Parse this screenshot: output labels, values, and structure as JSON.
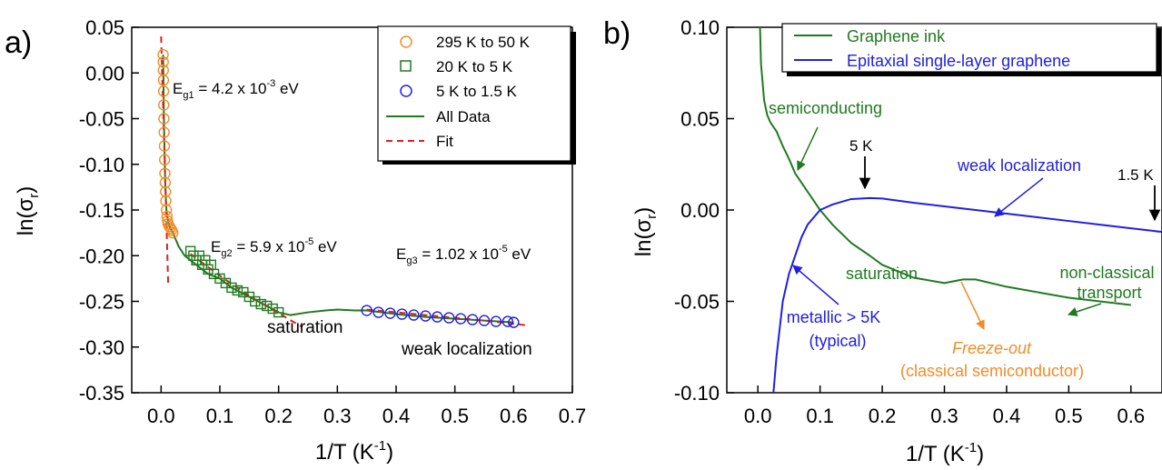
{
  "panels": {
    "a": {
      "panel_label": "a)",
      "xlabel_main": "1/T (K",
      "xlabel_sup": "-1",
      "xlabel_close": ")",
      "ylabel_main": "ln(σ",
      "ylabel_sub": "r",
      "ylabel_close": ")",
      "legend": [
        "295 K to 50 K",
        "20 K to 5 K",
        "5 K to 1.5 K",
        "All Data",
        "Fit"
      ],
      "annotations": {
        "eg1": {
          "prefix": "E",
          "sub": "g1",
          "text": " = 4.2 x 10",
          "sup": "-3",
          "suffix": " eV"
        },
        "eg2": {
          "prefix": "E",
          "sub": "g2",
          "text": " = 5.9 x 10",
          "sup": "-5",
          "suffix": " eV"
        },
        "eg3": {
          "prefix": "E",
          "sub": "g3",
          "text": " = 1.02 x 10",
          "sup": "-5",
          "suffix": " eV"
        },
        "saturation": "saturation",
        "weak_localization": "weak localization"
      }
    },
    "b": {
      "panel_label": "b)",
      "xlabel_main": "1/T (K",
      "xlabel_sup": "-1",
      "xlabel_close": ")",
      "ylabel_main": "ln(σ",
      "ylabel_sub": "r",
      "ylabel_close": ")",
      "legend": [
        "Graphene ink",
        "Epitaxial single-layer graphene"
      ],
      "annotations": {
        "semiconducting": "semiconducting",
        "five_k": "5 K",
        "weak_localization": "weak localization",
        "one_five_k": "1.5 K",
        "saturation": "saturation",
        "non_classical_1": "non-classical",
        "non_classical_2": "transport",
        "metallic_1": "metallic > 5K",
        "metallic_2": "(typical)",
        "freeze_out_1": "Freeze-out",
        "freeze_out_2": "(classical semiconductor)"
      }
    }
  },
  "colors": {
    "orange": "#f28c28",
    "green": "#1f7a1f",
    "blue": "#2020e0",
    "red": "#e02020",
    "black": "#000000"
  },
  "chart_data": [
    {
      "type": "scatter",
      "xlim": [
        -0.05,
        0.7
      ],
      "ylim": [
        -0.35,
        0.05
      ],
      "xticks": [
        0.0,
        0.1,
        0.2,
        0.3,
        0.4,
        0.5,
        0.6,
        0.7
      ],
      "yticks": [
        0.05,
        0.0,
        -0.05,
        -0.1,
        -0.15,
        -0.2,
        -0.25,
        -0.3,
        -0.35
      ],
      "legend_position": "top-right",
      "series": [
        {
          "name": "295 K to 50 K",
          "marker": "circle",
          "color": "orange",
          "x": [
            0.0034,
            0.0036,
            0.0038,
            0.004,
            0.0042,
            0.0045,
            0.0048,
            0.0052,
            0.0056,
            0.006,
            0.0065,
            0.007,
            0.0075,
            0.008,
            0.009,
            0.01,
            0.011,
            0.012,
            0.014,
            0.016,
            0.018,
            0.02
          ],
          "y": [
            0.02,
            0.012,
            0.003,
            -0.008,
            -0.02,
            -0.035,
            -0.05,
            -0.065,
            -0.08,
            -0.095,
            -0.11,
            -0.12,
            -0.13,
            -0.14,
            -0.15,
            -0.157,
            -0.162,
            -0.165,
            -0.168,
            -0.17,
            -0.172,
            -0.175
          ]
        },
        {
          "name": "20 K to 5 K",
          "marker": "square",
          "color": "green",
          "x": [
            0.05,
            0.055,
            0.06,
            0.065,
            0.07,
            0.075,
            0.08,
            0.085,
            0.09,
            0.1,
            0.11,
            0.12,
            0.13,
            0.14,
            0.15,
            0.16,
            0.17,
            0.18,
            0.19,
            0.2
          ],
          "y": [
            -0.195,
            -0.2,
            -0.205,
            -0.2,
            -0.21,
            -0.205,
            -0.215,
            -0.21,
            -0.22,
            -0.225,
            -0.23,
            -0.235,
            -0.238,
            -0.24,
            -0.245,
            -0.25,
            -0.253,
            -0.255,
            -0.258,
            -0.262
          ]
        },
        {
          "name": "5 K to 1.5 K",
          "marker": "circle",
          "color": "blue",
          "x": [
            0.35,
            0.37,
            0.39,
            0.41,
            0.43,
            0.45,
            0.47,
            0.49,
            0.51,
            0.53,
            0.55,
            0.57,
            0.59,
            0.6
          ],
          "y": [
            -0.26,
            -0.262,
            -0.263,
            -0.264,
            -0.265,
            -0.266,
            -0.267,
            -0.268,
            -0.269,
            -0.27,
            -0.271,
            -0.272,
            -0.272,
            -0.273
          ]
        },
        {
          "name": "All Data",
          "marker": "line",
          "color": "green",
          "x": [
            0.0034,
            0.005,
            0.007,
            0.009,
            0.012,
            0.016,
            0.02,
            0.03,
            0.04,
            0.05,
            0.06,
            0.08,
            0.1,
            0.12,
            0.15,
            0.18,
            0.2,
            0.22,
            0.25,
            0.28,
            0.3,
            0.33,
            0.35,
            0.4,
            0.45,
            0.5,
            0.55,
            0.6
          ],
          "y": [
            0.02,
            -0.06,
            -0.12,
            -0.15,
            -0.163,
            -0.17,
            -0.175,
            -0.19,
            -0.2,
            -0.205,
            -0.21,
            -0.22,
            -0.225,
            -0.235,
            -0.245,
            -0.255,
            -0.262,
            -0.265,
            -0.262,
            -0.26,
            -0.259,
            -0.26,
            -0.26,
            -0.264,
            -0.267,
            -0.269,
            -0.271,
            -0.273
          ]
        },
        {
          "name": "Fit",
          "marker": "dashed",
          "color": "red",
          "segments": [
            {
              "x": [
                0.0,
                0.004,
                0.008,
                0.012
              ],
              "y": [
                0.04,
                -0.05,
                -0.14,
                -0.23
              ]
            },
            {
              "x": [
                0.05,
                0.1,
                0.15,
                0.2,
                0.24
              ],
              "y": [
                -0.198,
                -0.222,
                -0.244,
                -0.263,
                -0.278
              ]
            },
            {
              "x": [
                0.35,
                0.45,
                0.55,
                0.62
              ],
              "y": [
                -0.259,
                -0.265,
                -0.271,
                -0.276
              ]
            }
          ]
        }
      ]
    },
    {
      "type": "line",
      "xlim": [
        -0.05,
        0.65
      ],
      "ylim": [
        -0.1,
        0.1
      ],
      "xticks": [
        0.0,
        0.1,
        0.2,
        0.3,
        0.4,
        0.5,
        0.6
      ],
      "yticks": [
        0.1,
        0.05,
        0.0,
        -0.05,
        -0.1
      ],
      "legend_position": "top",
      "series": [
        {
          "name": "Graphene ink",
          "color": "green",
          "x": [
            0.0034,
            0.005,
            0.01,
            0.015,
            0.02,
            0.03,
            0.04,
            0.05,
            0.06,
            0.07,
            0.08,
            0.09,
            0.1,
            0.12,
            0.15,
            0.18,
            0.2,
            0.25,
            0.3,
            0.33,
            0.35,
            0.4,
            0.45,
            0.5,
            0.55,
            0.6
          ],
          "y": [
            0.1,
            0.08,
            0.06,
            0.052,
            0.048,
            0.043,
            0.035,
            0.028,
            0.02,
            0.015,
            0.01,
            0.005,
            0.0,
            -0.008,
            -0.018,
            -0.025,
            -0.03,
            -0.037,
            -0.04,
            -0.038,
            -0.038,
            -0.042,
            -0.045,
            -0.048,
            -0.05,
            -0.052
          ]
        },
        {
          "name": "Epitaxial single-layer graphene",
          "color": "blue",
          "x": [
            0.025,
            0.03,
            0.035,
            0.04,
            0.05,
            0.06,
            0.07,
            0.08,
            0.1,
            0.12,
            0.15,
            0.18,
            0.2,
            0.25,
            0.3,
            0.35,
            0.4,
            0.45,
            0.5,
            0.55,
            0.6,
            0.65
          ],
          "y": [
            -0.1,
            -0.08,
            -0.065,
            -0.05,
            -0.035,
            -0.025,
            -0.015,
            -0.008,
            0.0,
            0.003,
            0.006,
            0.0065,
            0.0063,
            0.004,
            0.002,
            0.0,
            -0.002,
            -0.004,
            -0.006,
            -0.008,
            -0.01,
            -0.012
          ]
        }
      ]
    }
  ]
}
